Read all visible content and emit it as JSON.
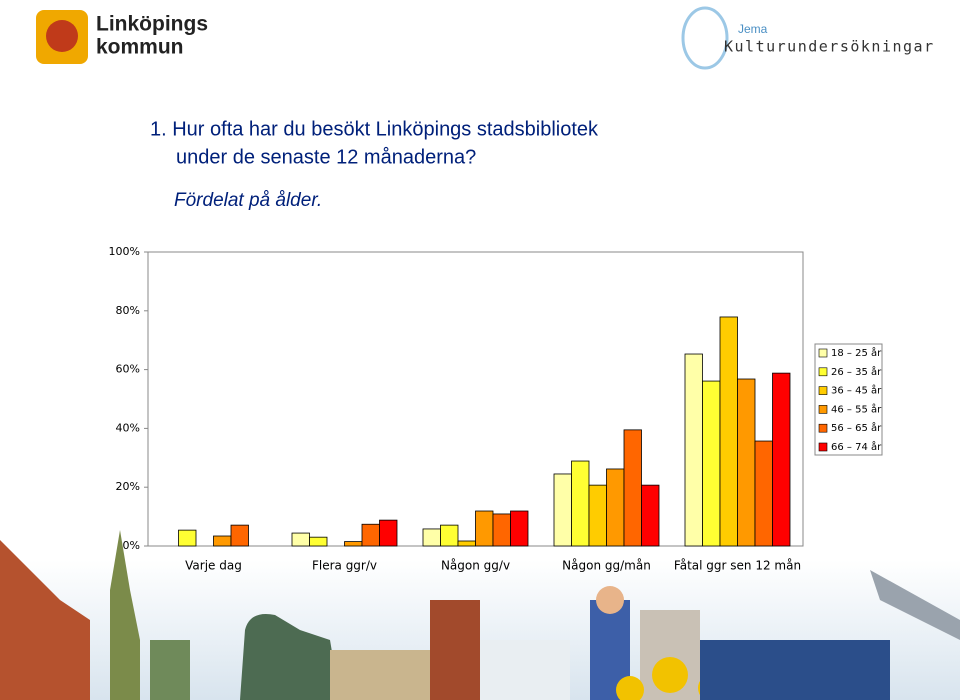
{
  "header": {
    "logo_left": [
      "Linköpings",
      "kommun"
    ],
    "logo_right_small": "Jema",
    "logo_right": "Kulturundersökningar"
  },
  "chart_data": {
    "type": "bar",
    "title": [
      "1. Hur ofta har du besökt Linköpings stadsbibliotek",
      "under de senaste 12 månaderna?"
    ],
    "subtitle": "Fördelat på ålder.",
    "categories": [
      "Varje dag",
      "Flera ggr/v",
      "Någon gg/v",
      "Någon gg/mån",
      "Fåtal ggr sen 12 mån"
    ],
    "series": [
      {
        "name": "18 – 25 år",
        "color": "#ffffa8",
        "values": [
          0,
          4.4,
          5.8,
          24.5,
          65.3
        ]
      },
      {
        "name": "26 – 35 år",
        "color": "#ffff33",
        "values": [
          5.4,
          3.0,
          7.1,
          28.9,
          56.1
        ]
      },
      {
        "name": "36 – 45 år",
        "color": "#ffcc00",
        "values": [
          0,
          0,
          1.7,
          20.7,
          77.9
        ]
      },
      {
        "name": "46 – 55 år",
        "color": "#ff9900",
        "values": [
          3.4,
          1.5,
          11.9,
          26.2,
          56.8
        ]
      },
      {
        "name": "56 – 65 år",
        "color": "#ff6600",
        "values": [
          7.1,
          7.4,
          10.9,
          39.5,
          35.7
        ]
      },
      {
        "name": "66 – 74 år",
        "color": "#ff0000",
        "values": [
          0,
          8.8,
          11.9,
          20.7,
          58.8
        ]
      }
    ],
    "ylim": [
      0,
      100
    ],
    "yticks": [
      {
        "value": 0,
        "label": "0%"
      },
      {
        "value": 20,
        "label": "20%"
      },
      {
        "value": 40,
        "label": "40%"
      },
      {
        "value": 60,
        "label": "60%"
      },
      {
        "value": 80,
        "label": "80%"
      },
      {
        "value": 100,
        "label": "100%"
      }
    ],
    "legend": "right"
  }
}
